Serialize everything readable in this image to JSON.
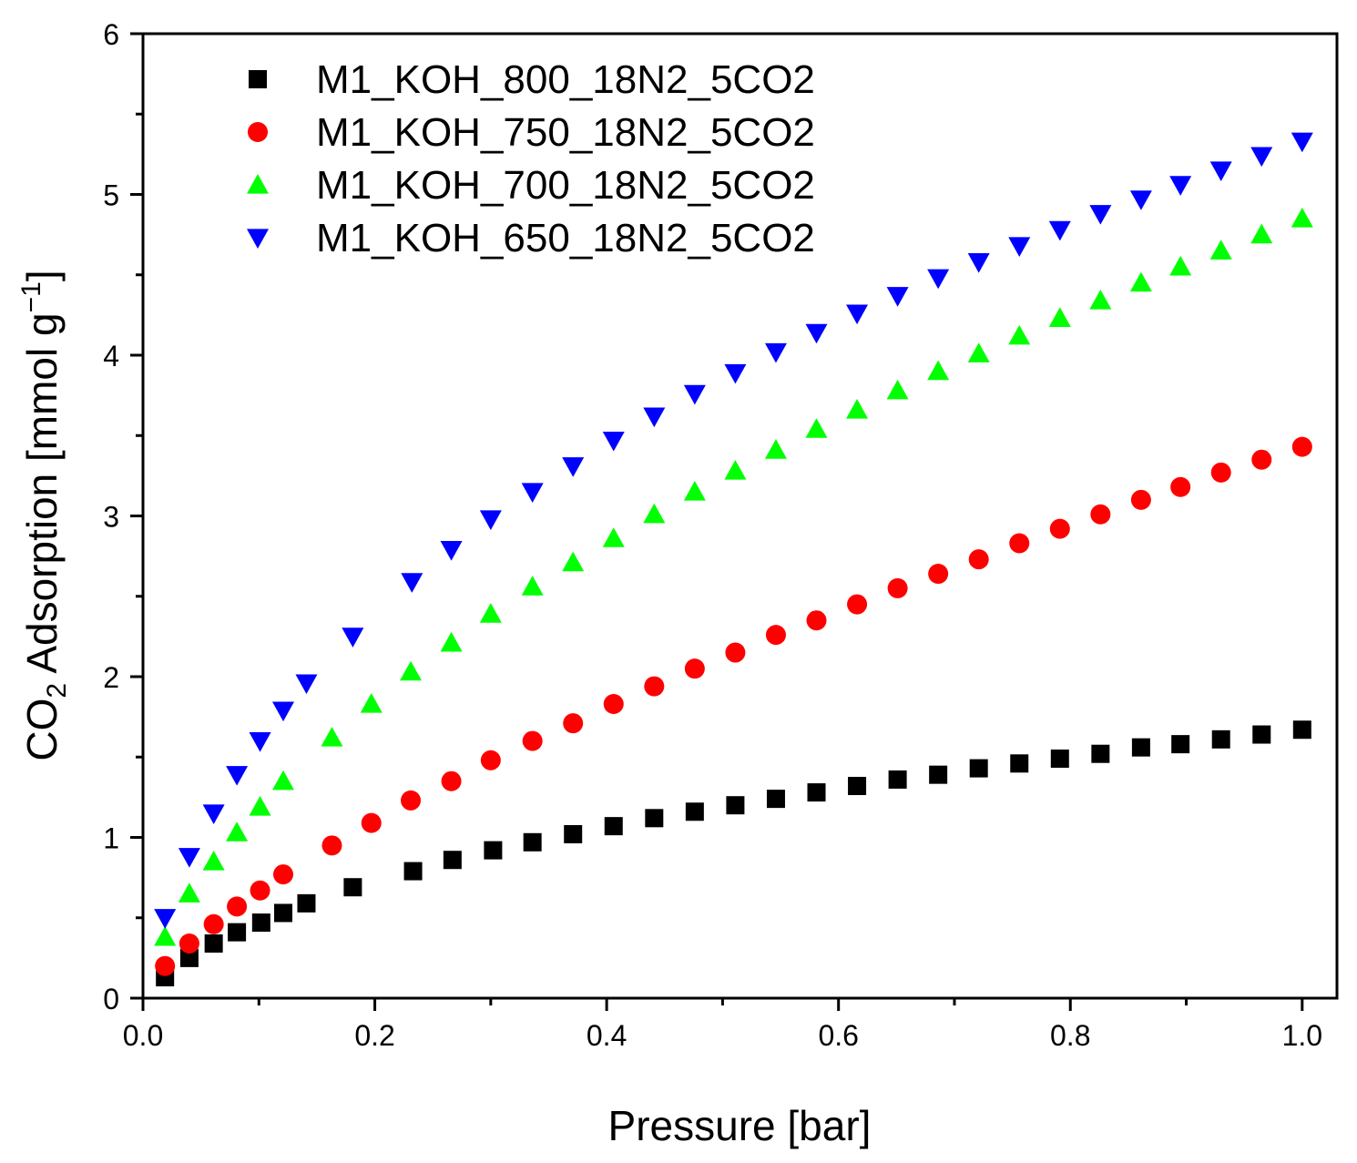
{
  "chart_data": {
    "type": "scatter",
    "title": "",
    "xlabel": "Pressure [bar]",
    "ylabel_parts": {
      "pre": "CO",
      "sub": "2",
      "mid": " Adsorption [mmol g",
      "sup": "−1",
      "post": "]"
    },
    "xlim": [
      0.0,
      1.03
    ],
    "ylim": [
      0,
      6
    ],
    "x_ticks": [
      0.0,
      0.2,
      0.4,
      0.6,
      0.8,
      1.0
    ],
    "x_tick_labels": [
      "0.0",
      "0.2",
      "0.4",
      "0.6",
      "0.8",
      "1.0"
    ],
    "y_ticks": [
      0,
      1,
      2,
      3,
      4,
      5,
      6
    ],
    "y_tick_labels": [
      "0",
      "1",
      "2",
      "3",
      "4",
      "5",
      "6"
    ],
    "grid": false,
    "legend_position": "top-left",
    "series": [
      {
        "name": "M1_KOH_800_18N2_5CO2",
        "marker": "square",
        "color": "#000000",
        "x": [
          0.019,
          0.04,
          0.061,
          0.081,
          0.102,
          0.121,
          0.141,
          0.181,
          0.233,
          0.267,
          0.302,
          0.336,
          0.371,
          0.406,
          0.441,
          0.476,
          0.511,
          0.546,
          0.581,
          0.616,
          0.651,
          0.686,
          0.721,
          0.756,
          0.791,
          0.826,
          0.861,
          0.895,
          0.93,
          0.965,
          1.0
        ],
        "y": [
          0.13,
          0.25,
          0.34,
          0.41,
          0.47,
          0.53,
          0.59,
          0.69,
          0.79,
          0.86,
          0.92,
          0.97,
          1.02,
          1.07,
          1.12,
          1.16,
          1.2,
          1.24,
          1.28,
          1.32,
          1.36,
          1.39,
          1.43,
          1.46,
          1.49,
          1.52,
          1.56,
          1.58,
          1.61,
          1.64,
          1.67
        ]
      },
      {
        "name": "M1_KOH_750_18N2_5CO2",
        "marker": "circle",
        "color": "#ff0000",
        "x": [
          0.019,
          0.04,
          0.061,
          0.081,
          0.101,
          0.121,
          0.163,
          0.197,
          0.231,
          0.266,
          0.3,
          0.336,
          0.371,
          0.406,
          0.441,
          0.476,
          0.511,
          0.546,
          0.581,
          0.616,
          0.651,
          0.686,
          0.721,
          0.756,
          0.791,
          0.826,
          0.861,
          0.895,
          0.93,
          0.965,
          1.0
        ],
        "y": [
          0.2,
          0.34,
          0.46,
          0.57,
          0.67,
          0.77,
          0.95,
          1.09,
          1.23,
          1.35,
          1.48,
          1.6,
          1.71,
          1.83,
          1.94,
          2.05,
          2.15,
          2.26,
          2.35,
          2.45,
          2.55,
          2.64,
          2.73,
          2.83,
          2.92,
          3.01,
          3.1,
          3.18,
          3.27,
          3.35,
          3.43
        ]
      },
      {
        "name": "M1_KOH_700_18N2_5CO2",
        "marker": "triangle-up",
        "color": "#00ff00",
        "x": [
          0.019,
          0.04,
          0.061,
          0.081,
          0.101,
          0.121,
          0.163,
          0.197,
          0.231,
          0.266,
          0.3,
          0.336,
          0.371,
          0.406,
          0.441,
          0.476,
          0.511,
          0.546,
          0.581,
          0.616,
          0.651,
          0.686,
          0.721,
          0.756,
          0.791,
          0.826,
          0.861,
          0.895,
          0.93,
          0.965,
          1.0
        ],
        "y": [
          0.38,
          0.65,
          0.85,
          1.03,
          1.19,
          1.35,
          1.62,
          1.83,
          2.03,
          2.21,
          2.39,
          2.56,
          2.71,
          2.86,
          3.01,
          3.15,
          3.28,
          3.41,
          3.54,
          3.66,
          3.78,
          3.9,
          4.01,
          4.12,
          4.23,
          4.34,
          4.45,
          4.55,
          4.65,
          4.75,
          4.85
        ]
      },
      {
        "name": "M1_KOH_650_18N2_5CO2",
        "marker": "triangle-down",
        "color": "#0000ff",
        "x": [
          0.019,
          0.04,
          0.061,
          0.081,
          0.101,
          0.121,
          0.141,
          0.181,
          0.232,
          0.266,
          0.3,
          0.336,
          0.371,
          0.406,
          0.441,
          0.476,
          0.511,
          0.546,
          0.581,
          0.616,
          0.651,
          0.686,
          0.721,
          0.756,
          0.791,
          0.826,
          0.861,
          0.895,
          0.93,
          0.965,
          1.0
        ],
        "y": [
          0.5,
          0.88,
          1.15,
          1.39,
          1.6,
          1.79,
          1.96,
          2.25,
          2.59,
          2.79,
          2.98,
          3.15,
          3.31,
          3.47,
          3.62,
          3.76,
          3.89,
          4.02,
          4.14,
          4.26,
          4.37,
          4.48,
          4.58,
          4.68,
          4.78,
          4.88,
          4.97,
          5.06,
          5.15,
          5.24,
          5.33
        ]
      }
    ]
  }
}
